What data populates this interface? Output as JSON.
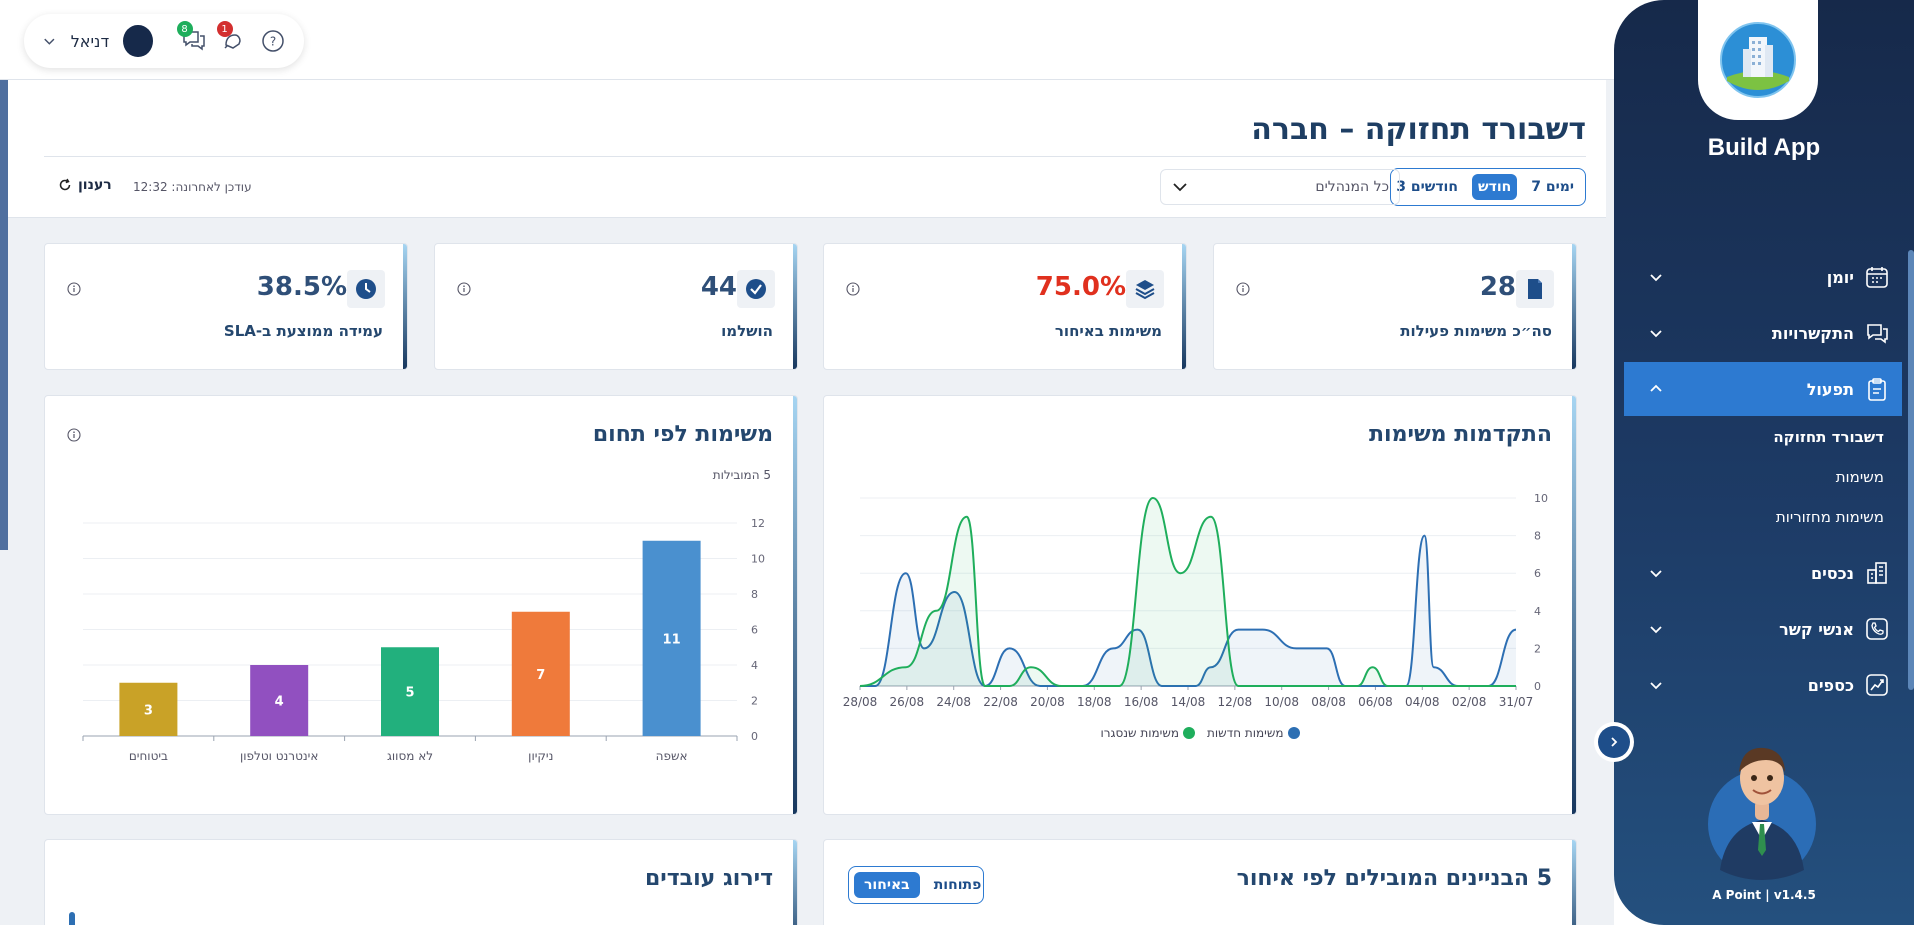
{
  "topbar": {
    "user_name": "דניאל",
    "chat_badge": "8",
    "notif_badge": "1"
  },
  "header": {
    "title": "דשבורד תחזוקה – חברה",
    "range_options": [
      "7 ימים",
      "חודש",
      "3 חודשים"
    ],
    "range_active": "חודש",
    "manager_select_value": "כל המנהלים",
    "updated_label": "עודכן לאחרונה: 12:32",
    "refresh_label": "רענון"
  },
  "kpis": [
    {
      "label": "סה״כ משימות פעילות",
      "value": "28",
      "icon": "document-icon"
    },
    {
      "label": "משימות באיחור",
      "value": "75.0%",
      "icon": "layers-icon",
      "color": "#e0301e"
    },
    {
      "label": "הושלמו",
      "value": "44",
      "icon": "check-circle-icon"
    },
    {
      "label": "עמידה ממוצעת ב-SLA",
      "value": "38.5%",
      "icon": "clock-icon"
    }
  ],
  "progress_card": {
    "title": "התקדמות משימות",
    "legend": [
      "משימות חדשות",
      "משימות שנסגרו"
    ]
  },
  "domain_card": {
    "title": "משימות לפי תחום",
    "subtitle": "5 המובילות"
  },
  "buildings_card": {
    "title": "5 הבניינים המובילים לפי איחור",
    "toggle": [
      "פתוחות",
      "באיחור"
    ],
    "toggle_active": "באיחור"
  },
  "employees_card": {
    "title": "דירוג עובדים"
  },
  "sidebar": {
    "brand": "Build App",
    "version": "A Point | v1.4.5",
    "items": [
      {
        "label": "יומן",
        "icon": "calendar-icon"
      },
      {
        "label": "התקשרויות",
        "icon": "chat-icon"
      },
      {
        "label": "תפעול",
        "icon": "clipboard-icon",
        "active": true
      },
      {
        "label": "נכסים",
        "icon": "buildings-icon"
      },
      {
        "label": "אנשי קשר",
        "icon": "phone-icon"
      },
      {
        "label": "כספים",
        "icon": "chart-icon"
      }
    ],
    "sub_items": [
      "דשבורד תחזוקה",
      "משימות",
      "משימות מחזוריות"
    ]
  },
  "chart_data": [
    {
      "type": "line",
      "title": "התקדמות משימות",
      "x": [
        "31/07",
        "02/08",
        "04/08",
        "06/08",
        "08/08",
        "10/08",
        "12/08",
        "14/08",
        "16/08",
        "18/08",
        "20/08",
        "22/08",
        "24/08",
        "26/08",
        "28/08"
      ],
      "ylim": [
        0,
        10
      ],
      "yticks": [
        0,
        2,
        4,
        6,
        8,
        10
      ],
      "x_reversed": true,
      "series": [
        {
          "name": "משימות חדשות",
          "color": "#2d6fb3",
          "points": [
            [
              0,
              3
            ],
            [
              0.9,
              0
            ],
            [
              1.9,
              0
            ],
            [
              2.7,
              1
            ],
            [
              3,
              8
            ],
            [
              3.6,
              0
            ],
            [
              4.6,
              0
            ],
            [
              5.6,
              0
            ],
            [
              6.2,
              2
            ],
            [
              7.2,
              2
            ],
            [
              8.3,
              3
            ],
            [
              9.1,
              3
            ],
            [
              10,
              1
            ],
            [
              10.5,
              0
            ],
            [
              11.6,
              0
            ],
            [
              12.4,
              3
            ],
            [
              13.2,
              2
            ],
            [
              14.2,
              0
            ],
            [
              15.6,
              0
            ],
            [
              16.6,
              2
            ],
            [
              17.4,
              0
            ],
            [
              18.4,
              5
            ],
            [
              19.4,
              2
            ],
            [
              20,
              6
            ],
            [
              21,
              0
            ],
            [
              21.5,
              0
            ]
          ]
        },
        {
          "name": "משימות שנסגרו",
          "color": "#1fae5c",
          "points": [
            [
              0,
              0
            ],
            [
              1.4,
              0
            ],
            [
              2.3,
              0
            ],
            [
              2.7,
              0
            ],
            [
              3,
              0
            ],
            [
              4.2,
              0
            ],
            [
              4.7,
              1
            ],
            [
              5.2,
              0
            ],
            [
              6.2,
              0
            ],
            [
              9.1,
              0
            ],
            [
              10,
              9
            ],
            [
              11,
              6
            ],
            [
              11.9,
              10
            ],
            [
              13,
              0
            ],
            [
              14.2,
              0
            ],
            [
              14.9,
              0
            ],
            [
              15.9,
              1
            ],
            [
              16.6,
              0
            ],
            [
              17.4,
              0
            ],
            [
              18,
              9
            ],
            [
              19,
              4
            ],
            [
              20,
              1
            ],
            [
              21.5,
              0
            ]
          ]
        }
      ]
    },
    {
      "type": "bar",
      "title": "משימות לפי תחום",
      "categories": [
        "אשפה",
        "ניקיון",
        "לא מסווג",
        "אינטרנט וטלפון",
        "ביטוחים"
      ],
      "values": [
        11,
        7,
        5,
        4,
        3
      ],
      "colors": [
        "#4a90cf",
        "#ef7a3b",
        "#22b07d",
        "#9150c0",
        "#c9a227"
      ],
      "ylim": [
        0,
        12
      ],
      "yticks": [
        0,
        2,
        4,
        6,
        8,
        10,
        12
      ]
    }
  ]
}
